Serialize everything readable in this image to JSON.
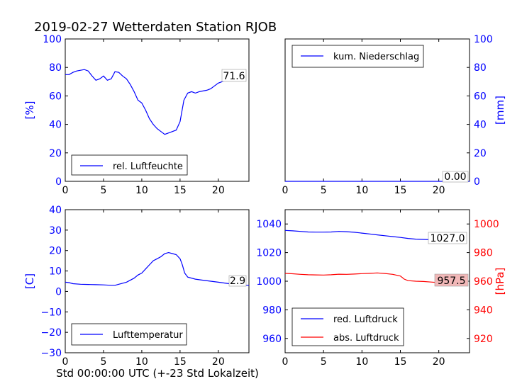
{
  "title": "2019-02-27 Wetterdaten Station RJOB",
  "xlabel": "Std 00:00:00 UTC (+-23 Std Lokalzeit)",
  "chart_data": [
    {
      "type": "line",
      "panel": "top-left",
      "ylabel": "[%]",
      "ylim": [
        0,
        100
      ],
      "xlim": [
        0,
        24
      ],
      "yticks": [
        0,
        20,
        40,
        60,
        80,
        100
      ],
      "xticks": [
        0,
        5,
        10,
        15,
        20
      ],
      "legend_position": "lower-left",
      "series": [
        {
          "name": "rel. Luftfeuchte",
          "color": "#0000ff",
          "x": [
            0,
            0.5,
            1,
            1.5,
            2,
            2.5,
            3,
            3.5,
            4,
            4.5,
            5,
            5.5,
            6,
            6.5,
            7,
            7.5,
            8,
            8.5,
            9,
            9.5,
            10,
            10.5,
            11,
            11.5,
            12,
            12.5,
            13,
            13.5,
            14,
            14.5,
            15,
            15.5,
            16,
            16.5,
            17,
            17.5,
            18,
            18.5,
            19,
            19.5,
            20,
            20.5,
            21,
            21.5,
            22,
            22.5,
            23,
            23.5
          ],
          "y": [
            75,
            75,
            76.5,
            77.5,
            78,
            78.5,
            77.5,
            74,
            71,
            72,
            74,
            71,
            72,
            77,
            76.5,
            74,
            72,
            68,
            63,
            57,
            55,
            50,
            44,
            40,
            37,
            35,
            33,
            34,
            35,
            36,
            42,
            57,
            62,
            63,
            62,
            63,
            63.5,
            64,
            65,
            67,
            69,
            70,
            71,
            72,
            73,
            73,
            73,
            72.5
          ]
        }
      ],
      "annotation": "71.6"
    },
    {
      "type": "line",
      "panel": "top-right",
      "ylabel": "[mm]",
      "ylim": [
        0,
        100
      ],
      "xlim": [
        0,
        24
      ],
      "yticks": [
        0,
        20,
        40,
        60,
        80,
        100
      ],
      "xticks": [
        0,
        5,
        10,
        15,
        20
      ],
      "legend_position": "upper-left",
      "series": [
        {
          "name": "kum. Niederschlag",
          "color": "#0000ff",
          "x": [
            0,
            24
          ],
          "y": [
            0,
            0
          ]
        }
      ],
      "annotation": "0.00"
    },
    {
      "type": "line",
      "panel": "bottom-left",
      "ylabel": "[C]",
      "ylim": [
        -30,
        40
      ],
      "xlim": [
        0,
        24
      ],
      "yticks": [
        -30,
        -20,
        -10,
        0,
        10,
        20,
        30,
        40
      ],
      "xticks": [
        0,
        5,
        10,
        15,
        20
      ],
      "legend_position": "lower-center",
      "series": [
        {
          "name": "Lufttemperatur",
          "color": "#0000ff",
          "x": [
            0,
            0.5,
            1,
            2,
            3,
            4,
            5,
            6,
            6.5,
            7,
            8,
            9,
            9.5,
            10,
            10.5,
            11,
            11.5,
            12,
            12.5,
            13,
            13.5,
            14,
            14.5,
            15,
            15.3,
            15.6,
            16,
            17,
            18,
            19,
            20,
            21,
            22,
            23,
            24
          ],
          "y": [
            4.5,
            4.3,
            3.8,
            3.5,
            3.4,
            3.3,
            3.2,
            3.0,
            3.0,
            3.5,
            4.5,
            6.5,
            8.0,
            9.0,
            11.0,
            13.0,
            15.0,
            16.0,
            17.0,
            18.5,
            19.0,
            18.5,
            18.0,
            16.0,
            13.0,
            9.0,
            7.0,
            6.0,
            5.5,
            5.0,
            4.5,
            4.0,
            3.5,
            3.0,
            3.0
          ]
        }
      ],
      "annotation": "2.9"
    },
    {
      "type": "line",
      "panel": "bottom-right",
      "ylabel": "[hPa]",
      "ylim_left": [
        950,
        1050
      ],
      "ylim_right": [
        910,
        1010
      ],
      "xlim": [
        0,
        24
      ],
      "yticks_left": [
        960,
        980,
        1000,
        1020,
        1040
      ],
      "yticks_right": [
        920,
        940,
        960,
        980,
        1000
      ],
      "xticks": [
        0,
        5,
        10,
        15,
        20
      ],
      "legend_position": "lower-left",
      "series": [
        {
          "name": "red. Luftdruck",
          "color": "#0000ff",
          "axis": "left",
          "x": [
            0,
            1,
            2,
            3,
            4,
            5,
            6,
            7,
            8,
            9,
            10,
            11,
            12,
            13,
            14,
            15,
            16,
            17,
            18,
            19,
            20,
            21,
            22,
            23
          ],
          "y": [
            1035.5,
            1035.2,
            1034.8,
            1034.4,
            1034.3,
            1034.3,
            1034.4,
            1034.8,
            1034.6,
            1034.2,
            1033.6,
            1033.0,
            1032.4,
            1031.8,
            1031.2,
            1030.6,
            1029.9,
            1029.4,
            1029.2,
            1029.0,
            1029.0,
            1028.5,
            1028.0,
            1027.0
          ]
        },
        {
          "name": "abs. Luftdruck",
          "color": "#ff0000",
          "axis": "right",
          "x": [
            0,
            1,
            2,
            3,
            4,
            5,
            6,
            7,
            8,
            9,
            10,
            11,
            12,
            13,
            14,
            15,
            15.5,
            16,
            17,
            18,
            19,
            20,
            21,
            22,
            23
          ],
          "y": [
            965.5,
            965.2,
            964.8,
            964.5,
            964.4,
            964.3,
            964.5,
            964.9,
            964.8,
            965.0,
            965.3,
            965.5,
            965.8,
            965.4,
            964.8,
            963.6,
            961.5,
            960.4,
            960.0,
            959.8,
            959.4,
            959.0,
            958.5,
            958.0,
            957.5
          ]
        }
      ],
      "annotations": [
        "1027.0",
        "957.5"
      ],
      "colors": {
        "left_axis": "#0000ff",
        "right_axis": "#ff0000"
      }
    }
  ]
}
